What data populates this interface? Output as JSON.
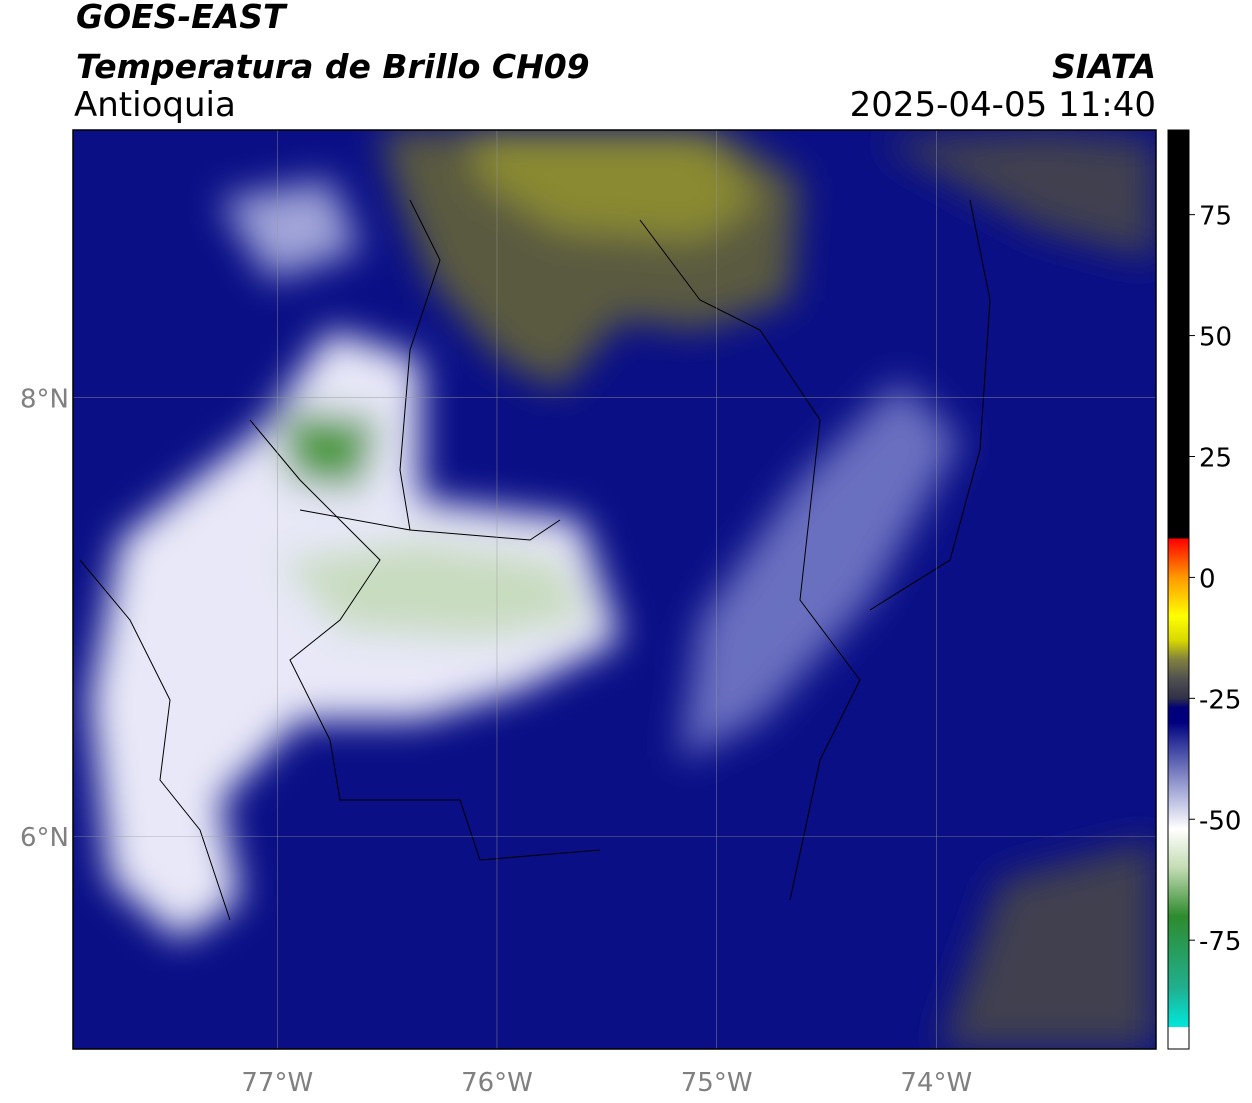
{
  "header": {
    "title": "GOES-EAST",
    "subtitle": "Temperatura de Brillo CH09",
    "region": "Antioquia",
    "source": "SIATA",
    "datetime": "2025-04-05 11:40"
  },
  "map": {
    "xlim": [
      -77.93,
      -73.0
    ],
    "ylim": [
      5.03,
      9.22
    ],
    "xticks": [
      {
        "value": -77,
        "label": "77°W"
      },
      {
        "value": -76,
        "label": "76°W"
      },
      {
        "value": -75,
        "label": "75°W"
      },
      {
        "value": -74,
        "label": "74°W"
      }
    ],
    "yticks": [
      {
        "value": 8,
        "label": "8°N"
      },
      {
        "value": 6,
        "label": "6°N"
      }
    ],
    "grid": true
  },
  "colorbar": {
    "lim": [
      -97.5,
      92.5
    ],
    "ticks": [
      75,
      50,
      25,
      0,
      -25,
      -50,
      -75
    ],
    "stops": [
      {
        "value": -97.5,
        "color": "#ffffff"
      },
      {
        "value": -93,
        "color": "#ffffff"
      },
      {
        "value": -93,
        "color": "#00e8dc"
      },
      {
        "value": -85,
        "color": "#20b090"
      },
      {
        "value": -70,
        "color": "#2e8b2e"
      },
      {
        "value": -60,
        "color": "#c4dcb4"
      },
      {
        "value": -52,
        "color": "#ffffff"
      },
      {
        "value": -45,
        "color": "#b0b4dc"
      },
      {
        "value": -35,
        "color": "#3a40a0"
      },
      {
        "value": -30,
        "color": "#000080"
      },
      {
        "value": -27,
        "color": "#000078"
      },
      {
        "value": -25,
        "color": "#303048"
      },
      {
        "value": -21,
        "color": "#505050"
      },
      {
        "value": -17,
        "color": "#808040"
      },
      {
        "value": -13,
        "color": "#d8d800"
      },
      {
        "value": -8,
        "color": "#ffff00"
      },
      {
        "value": 0,
        "color": "#ff9900"
      },
      {
        "value": 8,
        "color": "#ff0000"
      },
      {
        "value": 8,
        "color": "#000000"
      },
      {
        "value": 92.5,
        "color": "#000000"
      }
    ]
  }
}
